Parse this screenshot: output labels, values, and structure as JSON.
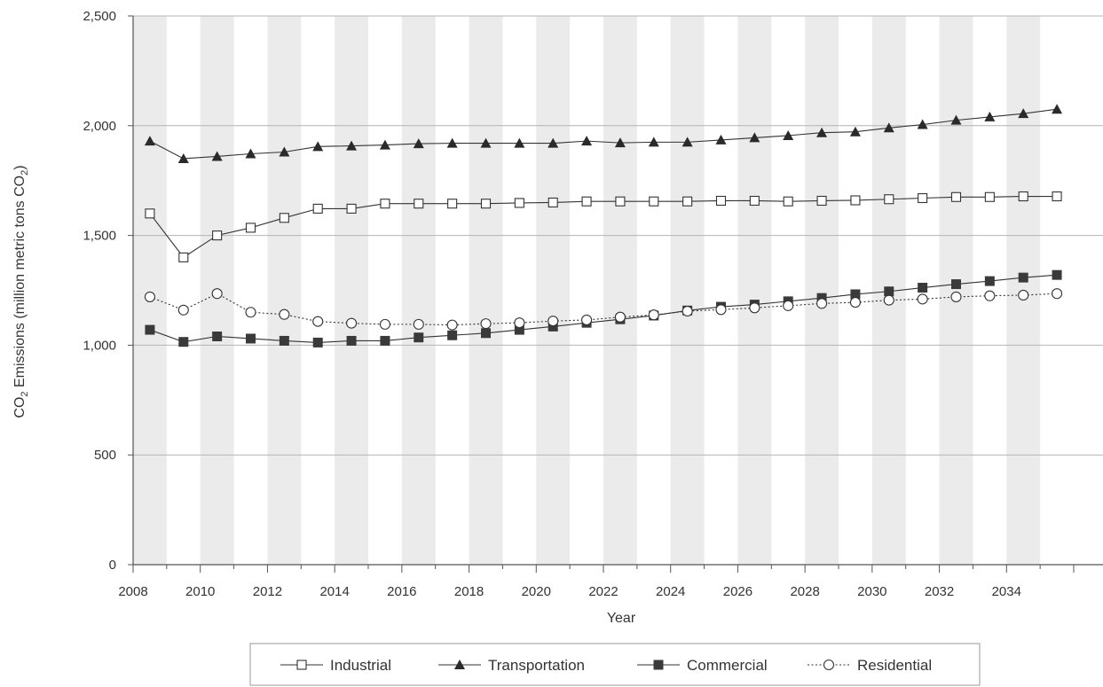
{
  "chart_data": {
    "type": "line",
    "title": "",
    "xlabel": "Year",
    "ylabel": {
      "prefix": "CO",
      "sub1": "2",
      "middle": " Emissions (million metric tons CO",
      "sub2": "2",
      "suffix": ")"
    },
    "xlim": [
      2008,
      2036
    ],
    "ylim": [
      0,
      2500
    ],
    "xticks": [
      "2008",
      "2010",
      "2012",
      "2014",
      "2016",
      "2018",
      "2020",
      "2022",
      "2024",
      "2026",
      "2028",
      "2030",
      "2032",
      "2034"
    ],
    "yticks": [
      "0",
      "500",
      "1,000",
      "1,500",
      "2,000",
      "2,500"
    ],
    "grid": {
      "horizontal": true,
      "alternating_year_bands": true
    },
    "legend_position": "bottom",
    "x": [
      2008.5,
      2009.5,
      2010.5,
      2011.5,
      2012.5,
      2013.5,
      2014.5,
      2015.5,
      2016.5,
      2017.5,
      2018.5,
      2019.5,
      2020.5,
      2021.5,
      2022.5,
      2023.5,
      2024.5,
      2025.5,
      2026.5,
      2027.5,
      2028.5,
      2029.5,
      2030.5,
      2031.5,
      2032.5,
      2033.5,
      2034.5,
      2035.5
    ],
    "series": [
      {
        "name": "Industrial",
        "marker": "square-open",
        "line": "solid",
        "values": [
          1600,
          1400,
          1500,
          1535,
          1580,
          1622,
          1622,
          1645,
          1645,
          1645,
          1645,
          1648,
          1650,
          1655,
          1655,
          1655,
          1655,
          1658,
          1658,
          1655,
          1658,
          1660,
          1665,
          1670,
          1675,
          1675,
          1678,
          1678
        ]
      },
      {
        "name": "Transportation",
        "marker": "triangle-filled",
        "line": "solid",
        "values": [
          1930,
          1850,
          1860,
          1872,
          1880,
          1905,
          1908,
          1912,
          1918,
          1920,
          1920,
          1920,
          1920,
          1930,
          1922,
          1925,
          1925,
          1935,
          1945,
          1955,
          1968,
          1972,
          1990,
          2005,
          2025,
          2040,
          2055,
          2075
        ]
      },
      {
        "name": "Commercial",
        "marker": "square-filled",
        "line": "solid",
        "values": [
          1070,
          1015,
          1040,
          1030,
          1020,
          1012,
          1020,
          1020,
          1035,
          1045,
          1055,
          1070,
          1085,
          1102,
          1118,
          1135,
          1158,
          1175,
          1185,
          1200,
          1215,
          1232,
          1245,
          1262,
          1278,
          1292,
          1308,
          1320
        ]
      },
      {
        "name": "Residential",
        "marker": "circle-open",
        "line": "dotted",
        "values": [
          1220,
          1160,
          1235,
          1150,
          1140,
          1108,
          1100,
          1095,
          1095,
          1092,
          1098,
          1102,
          1110,
          1115,
          1128,
          1138,
          1155,
          1162,
          1170,
          1180,
          1190,
          1195,
          1205,
          1210,
          1220,
          1225,
          1228,
          1235
        ]
      }
    ]
  }
}
